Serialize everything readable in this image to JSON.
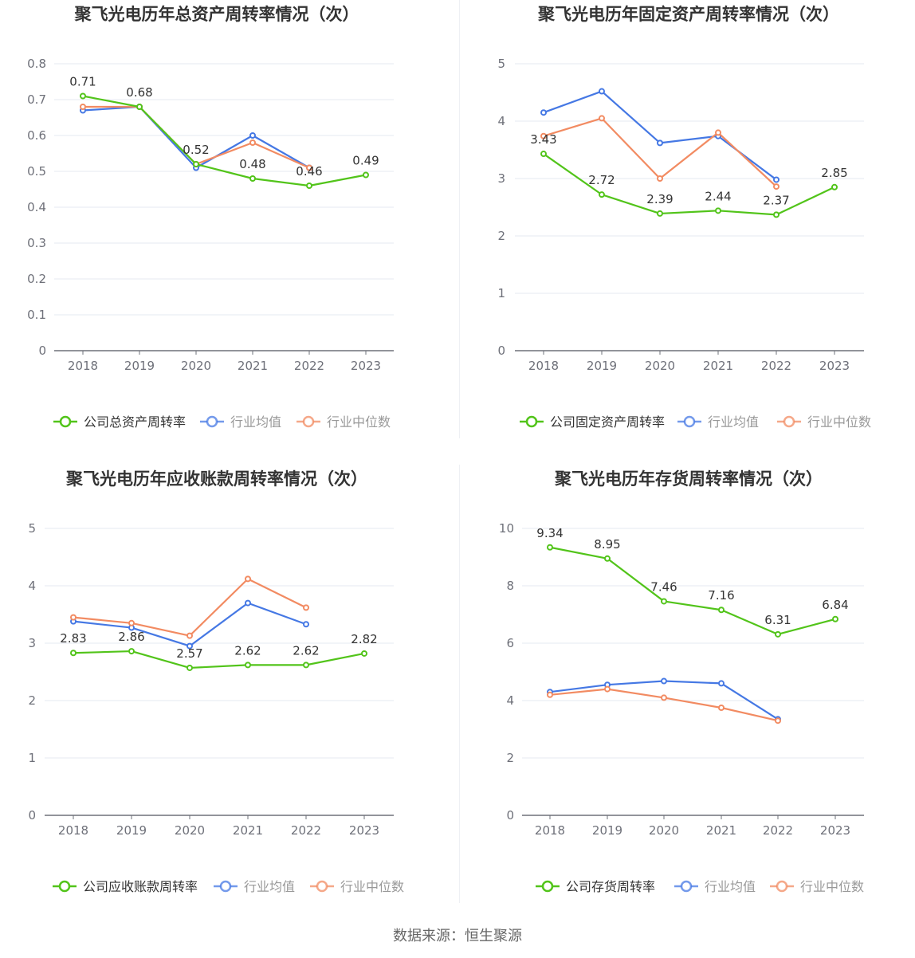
{
  "source_text": "数据来源：恒生聚源",
  "colors": {
    "company": "#52c41a",
    "avg": "#4578e4",
    "median": "#f28b62",
    "grid": "#e6e9f0",
    "axis": "#6e7079"
  },
  "legend_common": {
    "avg": "行业均值",
    "median": "行业中位数"
  },
  "chart_data": [
    {
      "type": "line",
      "title": "聚飞光电历年总资产周转率情况（次）",
      "categories": [
        "2018",
        "2019",
        "2020",
        "2021",
        "2022",
        "2023"
      ],
      "ylim": [
        0,
        0.8
      ],
      "yticks": [
        "0",
        "0.1",
        "0.2",
        "0.3",
        "0.4",
        "0.5",
        "0.6",
        "0.7",
        "0.8"
      ],
      "series": [
        {
          "name": "公司总资产周转率",
          "key": "company",
          "values": [
            0.71,
            0.68,
            0.52,
            0.48,
            0.46,
            0.49
          ],
          "labels": [
            "0.71",
            "0.68",
            "0.52",
            "0.48",
            "0.46",
            "0.49"
          ]
        },
        {
          "name": "行业均值",
          "key": "avg",
          "values": [
            0.67,
            0.68,
            0.51,
            0.6,
            0.51,
            null
          ]
        },
        {
          "name": "行业中位数",
          "key": "median",
          "values": [
            0.68,
            0.68,
            0.52,
            0.58,
            0.51,
            null
          ]
        }
      ]
    },
    {
      "type": "line",
      "title": "聚飞光电历年固定资产周转率情况（次）",
      "categories": [
        "2018",
        "2019",
        "2020",
        "2021",
        "2022",
        "2023"
      ],
      "ylim": [
        0,
        5
      ],
      "yticks": [
        "0",
        "1",
        "2",
        "3",
        "4",
        "5"
      ],
      "series": [
        {
          "name": "公司固定资产周转率",
          "key": "company",
          "values": [
            3.43,
            2.72,
            2.39,
            2.44,
            2.37,
            2.85
          ],
          "labels": [
            "3.43",
            "2.72",
            "2.39",
            "2.44",
            "2.37",
            "2.85"
          ]
        },
        {
          "name": "行业均值",
          "key": "avg",
          "values": [
            4.15,
            4.52,
            3.62,
            3.74,
            2.98,
            null
          ]
        },
        {
          "name": "行业中位数",
          "key": "median",
          "values": [
            3.74,
            4.05,
            3.0,
            3.8,
            2.86,
            null
          ]
        }
      ]
    },
    {
      "type": "line",
      "title": "聚飞光电历年应收账款周转率情况（次）",
      "categories": [
        "2018",
        "2019",
        "2020",
        "2021",
        "2022",
        "2023"
      ],
      "ylim": [
        0,
        5
      ],
      "yticks": [
        "0",
        "1",
        "2",
        "3",
        "4",
        "5"
      ],
      "series": [
        {
          "name": "公司应收账款周转率",
          "key": "company",
          "values": [
            2.83,
            2.86,
            2.57,
            2.62,
            2.62,
            2.82
          ],
          "labels": [
            "2.83",
            "2.86",
            "2.57",
            "2.62",
            "2.62",
            "2.82"
          ]
        },
        {
          "name": "行业均值",
          "key": "avg",
          "values": [
            3.38,
            3.27,
            2.95,
            3.7,
            3.33,
            null
          ]
        },
        {
          "name": "行业中位数",
          "key": "median",
          "values": [
            3.45,
            3.35,
            3.13,
            4.12,
            3.62,
            null
          ]
        }
      ]
    },
    {
      "type": "line",
      "title": "聚飞光电历年存货周转率情况（次）",
      "categories": [
        "2018",
        "2019",
        "2020",
        "2021",
        "2022",
        "2023"
      ],
      "ylim": [
        0,
        10
      ],
      "yticks": [
        "0",
        "2",
        "4",
        "6",
        "8",
        "10"
      ],
      "series": [
        {
          "name": "公司存货周转率",
          "key": "company",
          "values": [
            9.34,
            8.95,
            7.46,
            7.16,
            6.31,
            6.84
          ],
          "labels": [
            "9.34",
            "8.95",
            "7.46",
            "7.16",
            "6.31",
            "6.84"
          ]
        },
        {
          "name": "行业均值",
          "key": "avg",
          "values": [
            4.3,
            4.55,
            4.68,
            4.6,
            3.35,
            null
          ]
        },
        {
          "name": "行业中位数",
          "key": "median",
          "values": [
            4.2,
            4.4,
            4.1,
            3.75,
            3.3,
            null
          ]
        }
      ]
    }
  ]
}
